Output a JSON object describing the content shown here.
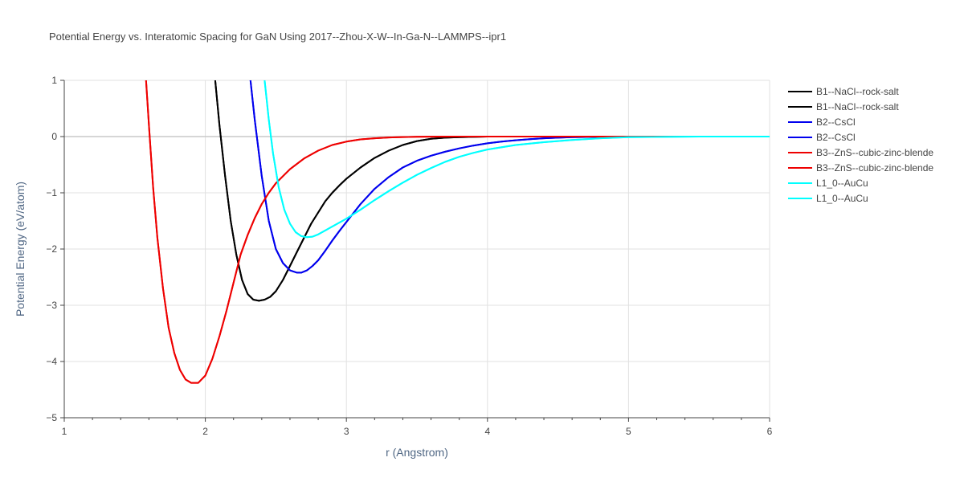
{
  "chart_data": {
    "type": "line",
    "title": "Potential Energy vs. Interatomic Spacing for GaN Using 2017--Zhou-X-W--In-Ga-N--LAMMPS--ipr1",
    "xlabel": "r (Angstrom)",
    "ylabel": "Potential Energy (eV/atom)",
    "xlim": [
      1,
      6
    ],
    "ylim": [
      -5,
      1
    ],
    "xticks": [
      1,
      2,
      3,
      4,
      5,
      6
    ],
    "xtick_labels": [
      "1",
      "2",
      "3",
      "4",
      "5",
      "6"
    ],
    "yticks": [
      1,
      0,
      -1,
      -2,
      -3,
      -4,
      -5
    ],
    "ytick_labels": [
      "1",
      "0",
      "−1",
      "−2",
      "−3",
      "−4",
      "−5"
    ],
    "grid": true,
    "legend_position": "top-right",
    "series": [
      {
        "name": "B1--NaCl--rock-salt",
        "color": "#000000",
        "x": [
          2.07,
          2.1,
          2.14,
          2.18,
          2.22,
          2.26,
          2.3,
          2.34,
          2.38,
          2.42,
          2.46,
          2.5,
          2.55,
          2.6,
          2.65,
          2.7,
          2.75,
          2.8,
          2.85,
          2.9,
          2.95,
          3.0,
          3.1,
          3.2,
          3.3,
          3.4,
          3.5,
          3.6,
          3.7,
          3.8,
          4.0,
          4.2,
          4.5,
          5.0,
          5.5,
          6.0
        ],
        "y": [
          1.0,
          0.2,
          -0.7,
          -1.5,
          -2.1,
          -2.55,
          -2.8,
          -2.9,
          -2.92,
          -2.9,
          -2.85,
          -2.75,
          -2.55,
          -2.3,
          -2.05,
          -1.8,
          -1.55,
          -1.35,
          -1.15,
          -1.0,
          -0.87,
          -0.75,
          -0.55,
          -0.38,
          -0.25,
          -0.15,
          -0.08,
          -0.04,
          -0.02,
          -0.01,
          0.0,
          0.0,
          0.0,
          0.0,
          0.0,
          0.0
        ]
      },
      {
        "name": "B1--NaCl--rock-salt",
        "color": "#000000",
        "x": [
          2.07,
          2.1,
          2.14,
          2.18,
          2.22,
          2.26,
          2.3,
          2.34,
          2.38,
          2.42,
          2.46,
          2.5,
          2.55,
          2.6,
          2.65,
          2.7,
          2.75,
          2.8,
          2.85,
          2.9,
          2.95,
          3.0,
          3.1,
          3.2,
          3.3,
          3.4,
          3.5,
          3.6,
          3.7,
          3.8,
          4.0,
          4.2,
          4.5,
          5.0,
          5.5,
          6.0
        ],
        "y": [
          1.0,
          0.2,
          -0.7,
          -1.5,
          -2.1,
          -2.55,
          -2.8,
          -2.9,
          -2.92,
          -2.9,
          -2.85,
          -2.75,
          -2.55,
          -2.3,
          -2.05,
          -1.8,
          -1.55,
          -1.35,
          -1.15,
          -1.0,
          -0.87,
          -0.75,
          -0.55,
          -0.38,
          -0.25,
          -0.15,
          -0.08,
          -0.04,
          -0.02,
          -0.01,
          0.0,
          0.0,
          0.0,
          0.0,
          0.0,
          0.0
        ]
      },
      {
        "name": "B2--CsCl",
        "color": "#0000ee",
        "x": [
          2.32,
          2.35,
          2.4,
          2.45,
          2.5,
          2.55,
          2.6,
          2.65,
          2.68,
          2.72,
          2.76,
          2.8,
          2.85,
          2.9,
          2.95,
          3.0,
          3.1,
          3.2,
          3.3,
          3.4,
          3.5,
          3.6,
          3.7,
          3.8,
          3.9,
          4.0,
          4.1,
          4.2,
          4.3,
          4.4,
          4.5,
          4.6,
          4.8,
          5.0,
          5.5,
          6.0
        ],
        "y": [
          1.0,
          0.3,
          -0.7,
          -1.5,
          -2.0,
          -2.25,
          -2.38,
          -2.42,
          -2.42,
          -2.38,
          -2.3,
          -2.2,
          -2.03,
          -1.85,
          -1.68,
          -1.52,
          -1.2,
          -0.93,
          -0.72,
          -0.55,
          -0.43,
          -0.34,
          -0.27,
          -0.21,
          -0.16,
          -0.12,
          -0.09,
          -0.065,
          -0.045,
          -0.03,
          -0.02,
          -0.012,
          -0.005,
          0.0,
          0.0,
          0.0
        ]
      },
      {
        "name": "B2--CsCl",
        "color": "#0000ee",
        "x": [
          2.32,
          2.35,
          2.4,
          2.45,
          2.5,
          2.55,
          2.6,
          2.65,
          2.68,
          2.72,
          2.76,
          2.8,
          2.85,
          2.9,
          2.95,
          3.0,
          3.1,
          3.2,
          3.3,
          3.4,
          3.5,
          3.6,
          3.7,
          3.8,
          3.9,
          4.0,
          4.1,
          4.2,
          4.3,
          4.4,
          4.5,
          4.6,
          4.8,
          5.0,
          5.5,
          6.0
        ],
        "y": [
          1.0,
          0.3,
          -0.7,
          -1.5,
          -2.0,
          -2.25,
          -2.38,
          -2.42,
          -2.42,
          -2.38,
          -2.3,
          -2.2,
          -2.03,
          -1.85,
          -1.68,
          -1.52,
          -1.2,
          -0.93,
          -0.72,
          -0.55,
          -0.43,
          -0.34,
          -0.27,
          -0.21,
          -0.16,
          -0.12,
          -0.09,
          -0.065,
          -0.045,
          -0.03,
          -0.02,
          -0.012,
          -0.005,
          0.0,
          0.0,
          0.0
        ]
      },
      {
        "name": "B3--ZnS--cubic-zinc-blende",
        "color": "#ee0000",
        "x": [
          1.58,
          1.6,
          1.63,
          1.66,
          1.7,
          1.74,
          1.78,
          1.82,
          1.86,
          1.9,
          1.95,
          2.0,
          2.05,
          2.1,
          2.15,
          2.2,
          2.25,
          2.3,
          2.35,
          2.4,
          2.45,
          2.5,
          2.6,
          2.7,
          2.8,
          2.9,
          3.0,
          3.1,
          3.2,
          3.3,
          3.4,
          3.5,
          3.6,
          3.8,
          4.0,
          4.5,
          5.0,
          5.5,
          6.0
        ],
        "y": [
          1.0,
          0.2,
          -0.9,
          -1.8,
          -2.7,
          -3.4,
          -3.85,
          -4.15,
          -4.32,
          -4.38,
          -4.38,
          -4.25,
          -3.95,
          -3.55,
          -3.1,
          -2.6,
          -2.1,
          -1.75,
          -1.45,
          -1.2,
          -1.0,
          -0.83,
          -0.58,
          -0.39,
          -0.25,
          -0.15,
          -0.09,
          -0.05,
          -0.03,
          -0.015,
          -0.008,
          -0.004,
          -0.002,
          0.0,
          0.0,
          0.0,
          0.0,
          0.0,
          0.0
        ]
      },
      {
        "name": "B3--ZnS--cubic-zinc-blende",
        "color": "#ee0000",
        "x": [
          1.58,
          1.6,
          1.63,
          1.66,
          1.7,
          1.74,
          1.78,
          1.82,
          1.86,
          1.9,
          1.95,
          2.0,
          2.05,
          2.1,
          2.15,
          2.2,
          2.25,
          2.3,
          2.35,
          2.4,
          2.45,
          2.5,
          2.6,
          2.7,
          2.8,
          2.9,
          3.0,
          3.1,
          3.2,
          3.3,
          3.4,
          3.5,
          3.6,
          3.8,
          4.0,
          4.5,
          5.0,
          5.5,
          6.0
        ],
        "y": [
          1.0,
          0.2,
          -0.9,
          -1.8,
          -2.7,
          -3.4,
          -3.85,
          -4.15,
          -4.32,
          -4.38,
          -4.38,
          -4.25,
          -3.95,
          -3.55,
          -3.1,
          -2.6,
          -2.1,
          -1.75,
          -1.45,
          -1.2,
          -1.0,
          -0.83,
          -0.58,
          -0.39,
          -0.25,
          -0.15,
          -0.09,
          -0.05,
          -0.03,
          -0.015,
          -0.008,
          -0.004,
          -0.002,
          0.0,
          0.0,
          0.0,
          0.0,
          0.0,
          0.0
        ]
      },
      {
        "name": "L1_0--AuCu",
        "color": "#00ffff",
        "x": [
          2.42,
          2.45,
          2.48,
          2.52,
          2.56,
          2.6,
          2.64,
          2.68,
          2.72,
          2.76,
          2.8,
          2.85,
          2.9,
          2.95,
          3.0,
          3.1,
          3.2,
          3.3,
          3.4,
          3.5,
          3.6,
          3.7,
          3.8,
          3.9,
          4.0,
          4.2,
          4.4,
          4.6,
          4.8,
          5.0,
          5.5,
          6.0
        ],
        "y": [
          1.0,
          0.3,
          -0.3,
          -0.9,
          -1.3,
          -1.55,
          -1.7,
          -1.77,
          -1.79,
          -1.78,
          -1.74,
          -1.67,
          -1.6,
          -1.53,
          -1.46,
          -1.3,
          -1.13,
          -0.97,
          -0.82,
          -0.68,
          -0.56,
          -0.45,
          -0.36,
          -0.29,
          -0.23,
          -0.15,
          -0.1,
          -0.06,
          -0.03,
          -0.01,
          0.0,
          0.0
        ]
      },
      {
        "name": "L1_0--AuCu",
        "color": "#00ffff",
        "x": [
          2.42,
          2.45,
          2.48,
          2.52,
          2.56,
          2.6,
          2.64,
          2.68,
          2.72,
          2.76,
          2.8,
          2.85,
          2.9,
          2.95,
          3.0,
          3.1,
          3.2,
          3.3,
          3.4,
          3.5,
          3.6,
          3.7,
          3.8,
          3.9,
          4.0,
          4.2,
          4.4,
          4.6,
          4.8,
          5.0,
          5.5,
          6.0
        ],
        "y": [
          1.0,
          0.3,
          -0.3,
          -0.9,
          -1.3,
          -1.55,
          -1.7,
          -1.77,
          -1.79,
          -1.78,
          -1.74,
          -1.67,
          -1.6,
          -1.53,
          -1.46,
          -1.3,
          -1.13,
          -0.97,
          -0.82,
          -0.68,
          -0.56,
          -0.45,
          -0.36,
          -0.29,
          -0.23,
          -0.15,
          -0.1,
          -0.06,
          -0.03,
          -0.01,
          0.0,
          0.0
        ]
      }
    ]
  }
}
